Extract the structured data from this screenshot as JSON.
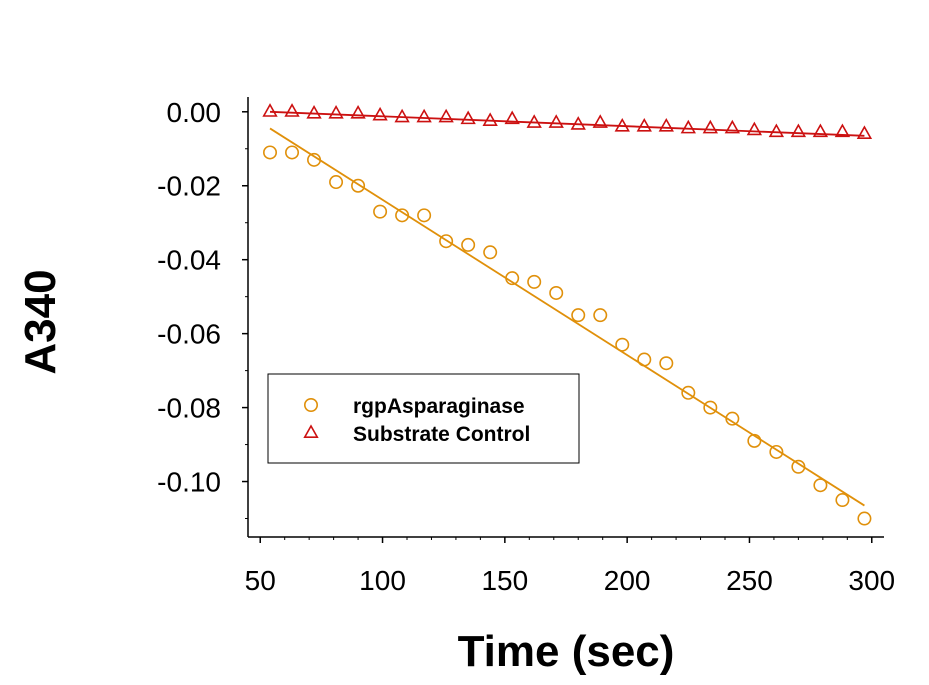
{
  "chart_data": {
    "type": "scatter",
    "title": "",
    "xlabel": "Time (sec)",
    "ylabel": "A340",
    "xlim": [
      45,
      305
    ],
    "ylim": [
      -0.115,
      0.004
    ],
    "xticks": [
      50,
      100,
      150,
      200,
      250,
      300
    ],
    "xtick_labels": [
      "50",
      "100",
      "150",
      "200",
      "250",
      "300"
    ],
    "yticks": [
      0.0,
      -0.02,
      -0.04,
      -0.06,
      -0.08,
      -0.1
    ],
    "ytick_labels": [
      "0.00",
      "-0.02",
      "-0.04",
      "-0.06",
      "-0.08",
      "-0.10"
    ],
    "grid": false,
    "legend_position": "lower-left",
    "series": [
      {
        "name": "rgpAsparaginase",
        "marker": "circle",
        "color": "#E0900A",
        "x": [
          54,
          63,
          72,
          81,
          90,
          99,
          108,
          117,
          126,
          135,
          144,
          153,
          162,
          171,
          180,
          189,
          198,
          207,
          216,
          225,
          234,
          243,
          252,
          261,
          270,
          279,
          288,
          297
        ],
        "y": [
          -0.011,
          -0.011,
          -0.013,
          -0.019,
          -0.02,
          -0.027,
          -0.028,
          -0.028,
          -0.035,
          -0.036,
          -0.038,
          -0.045,
          -0.046,
          -0.049,
          -0.055,
          -0.055,
          -0.063,
          -0.067,
          -0.068,
          -0.076,
          -0.08,
          -0.083,
          -0.089,
          -0.092,
          -0.096,
          -0.101,
          -0.105,
          -0.11
        ],
        "fit": {
          "x": [
            54,
            297
          ],
          "y": [
            -0.0045,
            -0.1065
          ]
        }
      },
      {
        "name": "Substrate Control",
        "marker": "triangle",
        "color": "#CC1111",
        "x": [
          54,
          63,
          72,
          81,
          90,
          99,
          108,
          117,
          126,
          135,
          144,
          153,
          162,
          171,
          180,
          189,
          198,
          207,
          216,
          225,
          234,
          243,
          252,
          261,
          270,
          279,
          288,
          297
        ],
        "y": [
          0.0,
          0.0,
          -0.0005,
          -0.0005,
          -0.0005,
          -0.001,
          -0.0015,
          -0.0015,
          -0.0015,
          -0.002,
          -0.0025,
          -0.002,
          -0.003,
          -0.003,
          -0.0035,
          -0.003,
          -0.004,
          -0.004,
          -0.004,
          -0.0045,
          -0.0045,
          -0.0045,
          -0.005,
          -0.0055,
          -0.0055,
          -0.0055,
          -0.0055,
          -0.006
        ],
        "fit": {
          "x": [
            54,
            297
          ],
          "y": [
            0.0,
            -0.0065
          ]
        }
      }
    ]
  }
}
